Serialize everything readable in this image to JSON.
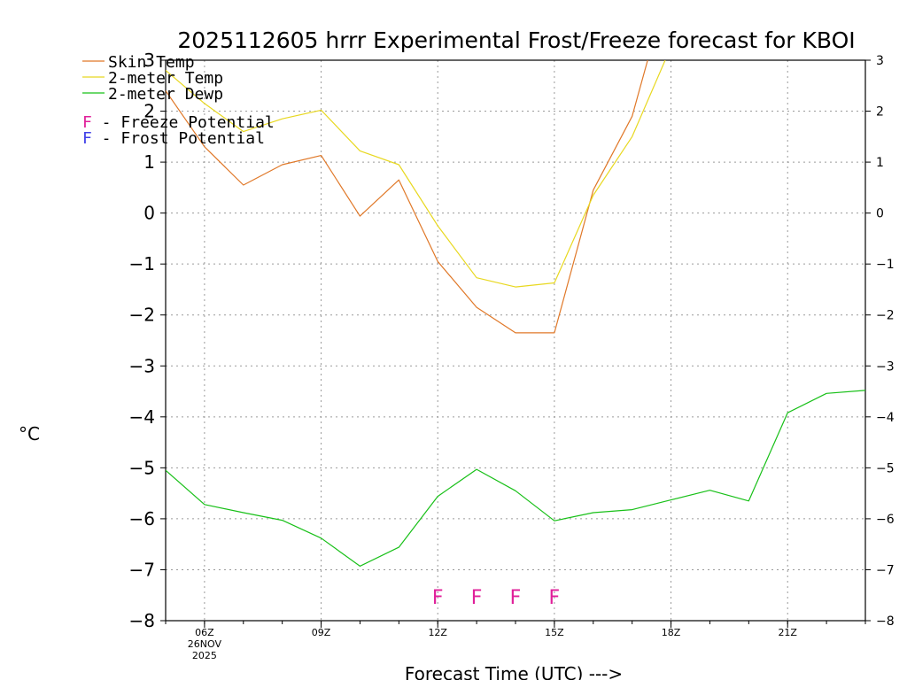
{
  "chart_data": {
    "type": "line",
    "title": "2025112605 hrrr Experimental Frost/Freeze forecast for KBOI",
    "xlabel": "Forecast Time (UTC) --->",
    "ylabel": "°C",
    "ylim": [
      -8,
      3
    ],
    "xlim": [
      5,
      23
    ],
    "y_ticks": [
      3,
      2,
      1,
      0,
      -1,
      -2,
      -3,
      -4,
      -5,
      -6,
      -7,
      -8
    ],
    "y_tick_labels": [
      "3",
      "2",
      "1",
      "0",
      "−1",
      "−2",
      "−3",
      "−4",
      "−5",
      "−6",
      "−7",
      "−8"
    ],
    "x_ticks": [
      {
        "hour": 6,
        "label": "06Z",
        "sub1": "26NOV",
        "sub2": "2025"
      },
      {
        "hour": 9,
        "label": "09Z"
      },
      {
        "hour": 12,
        "label": "12Z"
      },
      {
        "hour": 15,
        "label": "15Z"
      },
      {
        "hour": 18,
        "label": "18Z"
      },
      {
        "hour": 21,
        "label": "21Z"
      }
    ],
    "series": [
      {
        "name": "Skin Temp",
        "color": "#e07828",
        "x": [
          5,
          6,
          7,
          8,
          9,
          10,
          11,
          12,
          13,
          14,
          15,
          16,
          17,
          17.4
        ],
        "values": [
          2.4,
          1.3,
          0.55,
          0.95,
          1.13,
          -0.06,
          0.65,
          -0.95,
          -1.85,
          -2.35,
          -2.35,
          0.45,
          1.9,
          3.0
        ]
      },
      {
        "name": "2-meter Temp",
        "color": "#e8d820",
        "x": [
          5,
          6,
          7,
          8,
          9,
          10,
          11,
          12,
          13,
          14,
          15,
          16,
          17,
          17.85
        ],
        "values": [
          2.8,
          2.15,
          1.6,
          1.85,
          2.02,
          1.22,
          0.95,
          -0.25,
          -1.27,
          -1.45,
          -1.37,
          0.35,
          1.5,
          3.0
        ]
      },
      {
        "name": "2-meter Dewp",
        "color": "#18c018",
        "x": [
          5,
          6,
          7,
          8,
          9,
          10,
          11,
          12,
          13,
          14,
          15,
          16,
          17,
          18,
          19,
          20,
          21,
          22,
          23
        ],
        "values": [
          -5.05,
          -5.72,
          -5.88,
          -6.03,
          -6.38,
          -6.93,
          -6.56,
          -5.56,
          -5.03,
          -5.45,
          -6.04,
          -5.88,
          -5.82,
          -5.63,
          -5.44,
          -5.65,
          -3.92,
          -3.54,
          -3.48
        ]
      }
    ],
    "legend": {
      "position": "top-left",
      "entries": [
        {
          "label": "Skin Temp",
          "color": "#e07828"
        },
        {
          "label": "2-meter Temp",
          "color": "#e8d820"
        },
        {
          "label": "2-meter Dewp",
          "color": "#18c018"
        }
      ],
      "flag_entries": [
        {
          "symbol": "F",
          "text": " - Freeze Potential",
          "color": "#e0209a"
        },
        {
          "symbol": "F",
          "text": " - Frost Potential",
          "color": "#4040e8"
        }
      ]
    },
    "freeze_flags": {
      "symbol": "F",
      "color": "#e0209a",
      "hours": [
        12,
        13,
        14,
        15
      ]
    }
  }
}
